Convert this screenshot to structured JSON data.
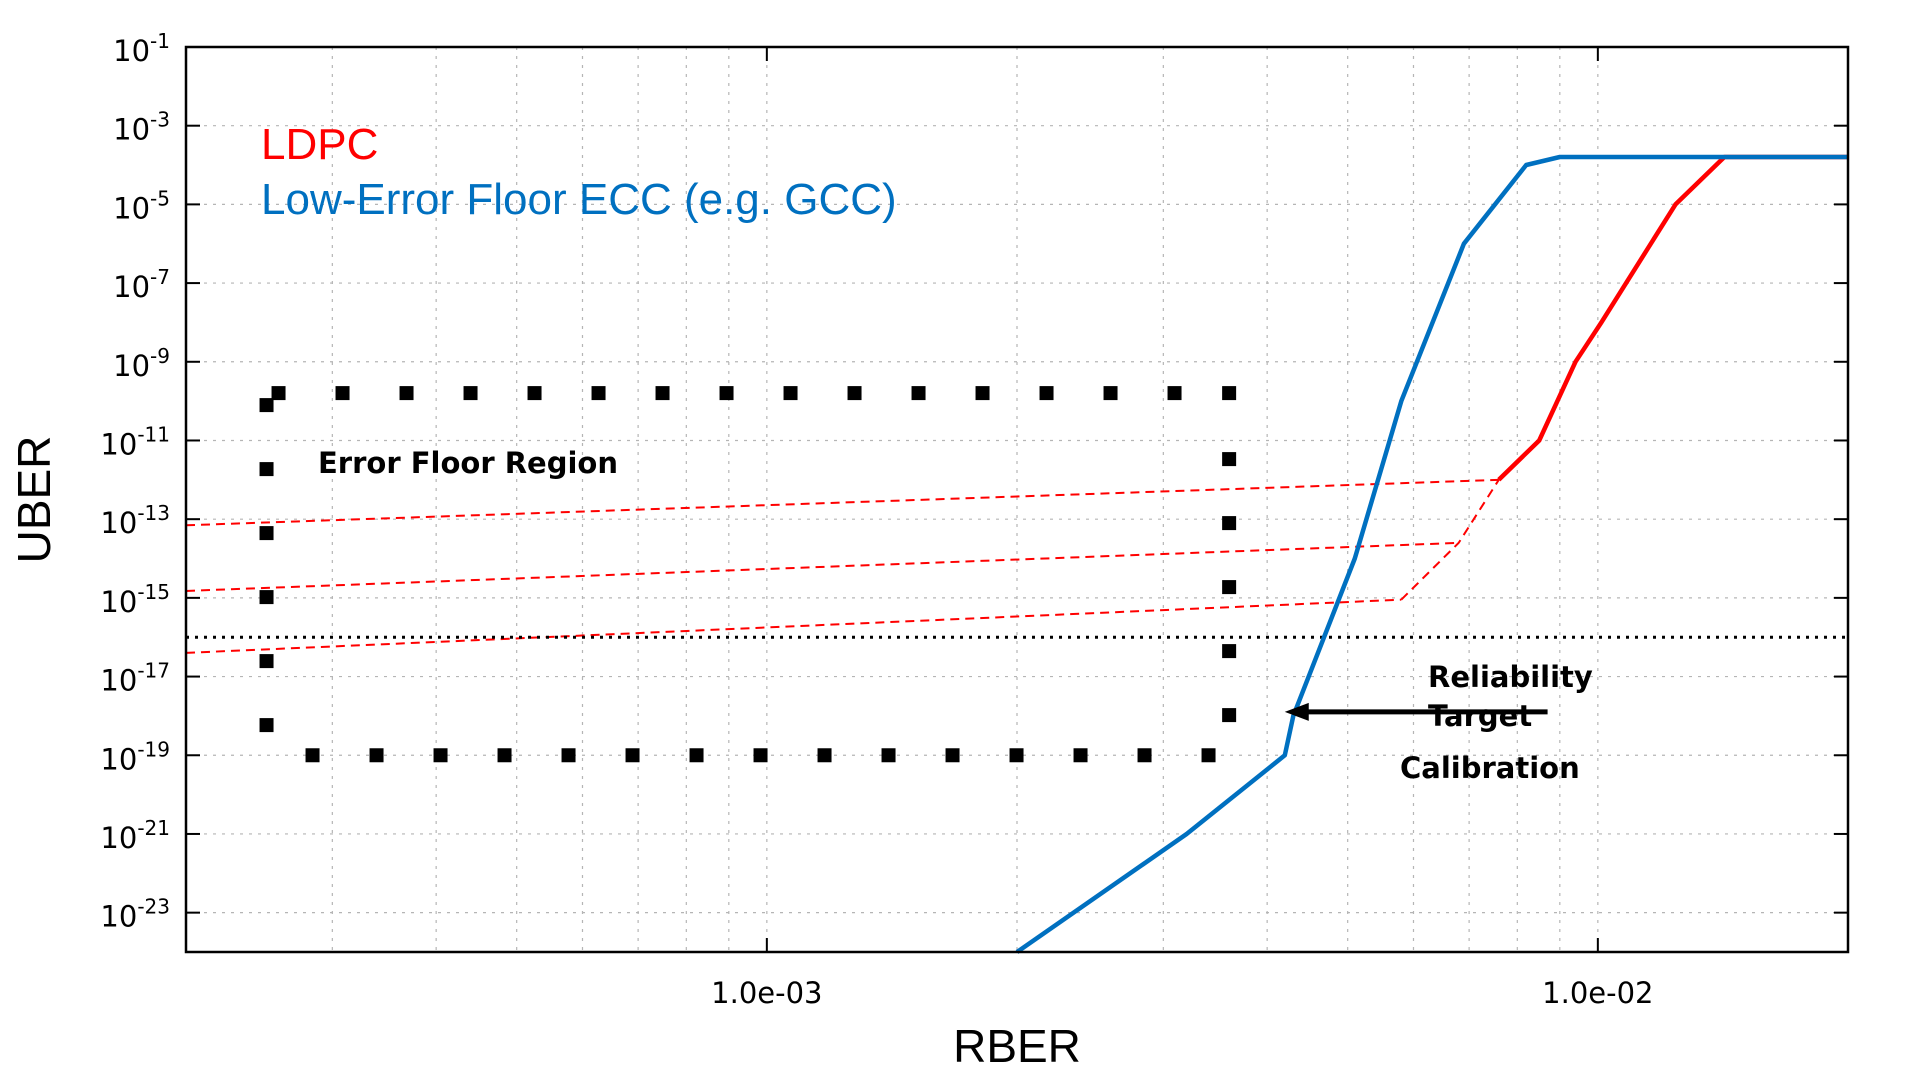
{
  "chart_data": {
    "type": "line",
    "xlabel": "RBER",
    "ylabel": "UBER",
    "xscale": "log",
    "yscale": "log",
    "xlim": [
      0.0002,
      0.02
    ],
    "ylim": [
      1e-24,
      0.1
    ],
    "grid": true,
    "x_ticks": [
      {
        "value": 0.001,
        "label": "1.0e-03"
      },
      {
        "value": 0.01,
        "label": "1.0e-02"
      }
    ],
    "y_ticks": [
      {
        "value": 0.1,
        "base": "10",
        "exp": "-1"
      },
      {
        "value": 0.001,
        "base": "10",
        "exp": "-3"
      },
      {
        "value": 1e-05,
        "base": "10",
        "exp": "-5"
      },
      {
        "value": 1e-07,
        "base": "10",
        "exp": "-7"
      },
      {
        "value": 1e-09,
        "base": "10",
        "exp": "-9"
      },
      {
        "value": 1e-11,
        "base": "10",
        "exp": "-11"
      },
      {
        "value": 1e-13,
        "base": "10",
        "exp": "-13"
      },
      {
        "value": 1e-15,
        "base": "10",
        "exp": "-15"
      },
      {
        "value": 1e-17,
        "base": "10",
        "exp": "-17"
      },
      {
        "value": 1e-19,
        "base": "10",
        "exp": "-19"
      },
      {
        "value": 1e-21,
        "base": "10",
        "exp": "-21"
      },
      {
        "value": 1e-23,
        "base": "10",
        "exp": "-23"
      }
    ],
    "series": [
      {
        "name": "LDPC",
        "color": "#ff0000",
        "points": [
          [
            0.0076,
            1e-12
          ],
          [
            0.0085,
            1e-11
          ],
          [
            0.0094,
            1e-09
          ],
          [
            0.0101,
            1e-08
          ],
          [
            0.0124,
            1e-05
          ],
          [
            0.0142,
            0.00016
          ],
          [
            0.02,
            0.00016
          ]
        ]
      },
      {
        "name": "Low-Error Floor ECC (e.g. GCC)",
        "color": "#0070c0",
        "points": [
          [
            0.002,
            1e-24
          ],
          [
            0.0032,
            1e-21
          ],
          [
            0.0042,
            1e-19
          ],
          [
            0.0043,
            1e-18
          ],
          [
            0.0051,
            1e-14
          ],
          [
            0.0058,
            1e-10
          ],
          [
            0.0069,
            1e-06
          ],
          [
            0.0082,
            0.0001
          ],
          [
            0.009,
            0.00016
          ],
          [
            0.02,
            0.00016
          ]
        ]
      }
    ],
    "error_floor_lines": {
      "color": "#ff0000",
      "style": "dashed",
      "lines": [
        [
          [
            0.0002,
            7e-14
          ],
          [
            0.0076,
            1e-12
          ]
        ],
        [
          [
            0.0002,
            1.5e-15
          ],
          [
            0.0068,
            2.5e-14
          ]
        ],
        [
          [
            0.0002,
            4e-17
          ],
          [
            0.0058,
            9e-16
          ]
        ]
      ]
    },
    "reliability_target": {
      "value": 1e-16,
      "style": "dotted",
      "color": "#000000"
    },
    "error_floor_box": {
      "x_range": [
        0.00025,
        0.0036
      ],
      "y_range": [
        1e-19,
        1.6e-10
      ]
    },
    "calibration_arrow": {
      "from": [
        0.0087,
        1e-18
      ],
      "to": [
        0.0042,
        1e-18
      ]
    },
    "annotations": {
      "error_floor_region": "Error Floor Region",
      "reliability_target_1": "Reliability",
      "reliability_target_2": "Target",
      "calibration": "Calibration"
    },
    "legend": {
      "placement": "top-left",
      "entries": [
        {
          "label": "LDPC",
          "color": "#ff0000"
        },
        {
          "label": "Low-Error Floor ECC (e.g. GCC)",
          "color": "#0070c0"
        }
      ]
    }
  }
}
